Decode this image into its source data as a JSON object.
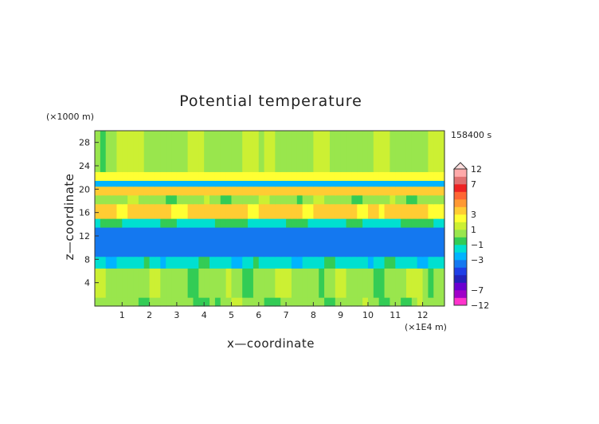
{
  "chart_data": {
    "type": "heatmap",
    "title": "Potential temperature",
    "xlabel": "x—coordinate",
    "ylabel": "z—coordinate",
    "x_unit": "(×1E4 m)",
    "y_unit": "(×1000 m)",
    "time_label": "158400 s",
    "xlim": [
      0,
      12.8
    ],
    "ylim": [
      0,
      30
    ],
    "x_ticks": [
      "1",
      "2",
      "3",
      "4",
      "5",
      "6",
      "7",
      "8",
      "9",
      "10",
      "11",
      "12"
    ],
    "y_ticks": [
      "4",
      "8",
      "12",
      "16",
      "20",
      "24",
      "28"
    ],
    "colorbar_labels": [
      "12",
      "7",
      "3",
      "1",
      "−1",
      "−3",
      "−7",
      "−12"
    ],
    "colorbar_levels": [
      -12,
      -9,
      -7,
      -6,
      -5,
      -4,
      -3,
      -2,
      -1,
      0,
      1,
      2,
      3,
      4,
      5,
      6,
      7,
      9,
      12
    ],
    "colorbar_colors": [
      "#ff33cc",
      "#a000c8",
      "#6a00d0",
      "#2222bb",
      "#1e3fe6",
      "#1478f0",
      "#00b4ff",
      "#00e0d0",
      "#33cc55",
      "#99e64d",
      "#ccf033",
      "#ffff33",
      "#ffcc33",
      "#ff9933",
      "#ff6633",
      "#ee2222",
      "#e07070",
      "#ffaaaa"
    ],
    "bands": [
      {
        "z": [
          0,
          1.5
        ],
        "value": 0.3,
        "label": "near-ground green"
      },
      {
        "z": [
          1.5,
          6.5
        ],
        "value": 0.6,
        "label": "lower layer yellow-green"
      },
      {
        "z": [
          6.5,
          8.5
        ],
        "value": -1.5,
        "label": "cyan transition"
      },
      {
        "z": [
          8.5,
          13.5
        ],
        "value": -3.5,
        "label": "cold blue layer"
      },
      {
        "z": [
          13.5,
          15
        ],
        "value": -1.2,
        "label": "cyan/green"
      },
      {
        "z": [
          15,
          17.5
        ],
        "value": 3.2,
        "label": "warm orange band"
      },
      {
        "z": [
          17.5,
          19
        ],
        "value": 0.5,
        "label": "yellow-green"
      },
      {
        "z": [
          19,
          20.5
        ],
        "value": 3.5,
        "label": "warm orange band"
      },
      {
        "z": [
          20.5,
          21.5
        ],
        "value": -2.5,
        "label": "cold streaks"
      },
      {
        "z": [
          21.5,
          23
        ],
        "value": 2.5,
        "label": "orange band"
      },
      {
        "z": [
          23,
          30
        ],
        "value": 0.8,
        "label": "upper yellow-green"
      }
    ]
  }
}
